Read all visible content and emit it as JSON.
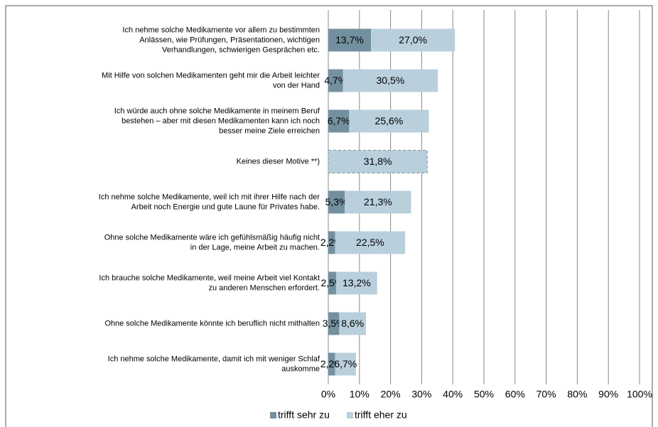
{
  "chart_data": {
    "type": "stacked-barh",
    "categories": [
      [
        "Ich nehme solche Medikamente vor allem zu bestimmten",
        "Anlässen, wie Prüfungen,  Präsentationen, wichtigen",
        "Verhandlungen, schwierigen Gesprächen etc."
      ],
      [
        "Mit Hilfe von solchen Medikamenten geht mir die Arbeit leichter",
        "von der Hand"
      ],
      [
        "Ich würde auch ohne solche Medikamente in meinem Beruf",
        "bestehen – aber mit diesen Medikamenten kann ich noch",
        "besser meine Ziele erreichen"
      ],
      [
        "Keines dieser Motive **)"
      ],
      [
        "Ich nehme solche Medikamente, weil ich mit ihrer Hilfe nach der",
        "Arbeit noch Energie und gute Laune für Privates habe."
      ],
      [
        "Ohne solche Medikamente wäre ich gefühlsmäßig häufig nicht",
        "in der Lage, meine Arbeit zu machen."
      ],
      [
        "Ich brauche solche Medikamente, weil meine Arbeit viel Kontakt",
        "zu anderen Menschen erfordert."
      ],
      [
        "Ohne solche Medikamente könnte ich beruflich nicht mithalten"
      ],
      [
        "Ich nehme solche Medikamente, damit ich mit weniger Schlaf",
        "auskomme"
      ]
    ],
    "series": [
      {
        "name": "trifft sehr zu",
        "color": "#7390a0",
        "values": [
          13.7,
          4.7,
          6.7,
          null,
          5.3,
          2.2,
          2.5,
          3.5,
          2.2
        ],
        "value_labels": [
          "13,7%",
          "4,7%",
          "6,7%",
          null,
          "5,3%",
          "2,2%",
          "2,5%",
          "3,5%",
          "2,2%"
        ]
      },
      {
        "name": "trifft eher zu",
        "color": "#b9cfdc",
        "values": [
          27.0,
          30.5,
          25.6,
          31.8,
          21.3,
          22.5,
          13.2,
          8.6,
          6.7
        ],
        "value_labels": [
          "27,0%",
          "30,5%",
          "25,6%",
          "31,8%",
          "21,3%",
          "22,5%",
          "13,2%",
          "8,6%",
          "6,7%"
        ]
      }
    ],
    "xlim": [
      0,
      100
    ],
    "xticks": [
      {
        "value": 0,
        "label": "0%"
      },
      {
        "value": 10,
        "label": "10%"
      },
      {
        "value": 20,
        "label": "20%"
      },
      {
        "value": 30,
        "label": "30%"
      },
      {
        "value": 40,
        "label": "40%"
      },
      {
        "value": 50,
        "label": "50%"
      },
      {
        "value": 60,
        "label": "60%"
      },
      {
        "value": 70,
        "label": "70%"
      },
      {
        "value": 80,
        "label": "80%"
      },
      {
        "value": 90,
        "label": "90%"
      },
      {
        "value": 100,
        "label": "100%"
      }
    ],
    "grid": true,
    "legend": "bottom"
  }
}
